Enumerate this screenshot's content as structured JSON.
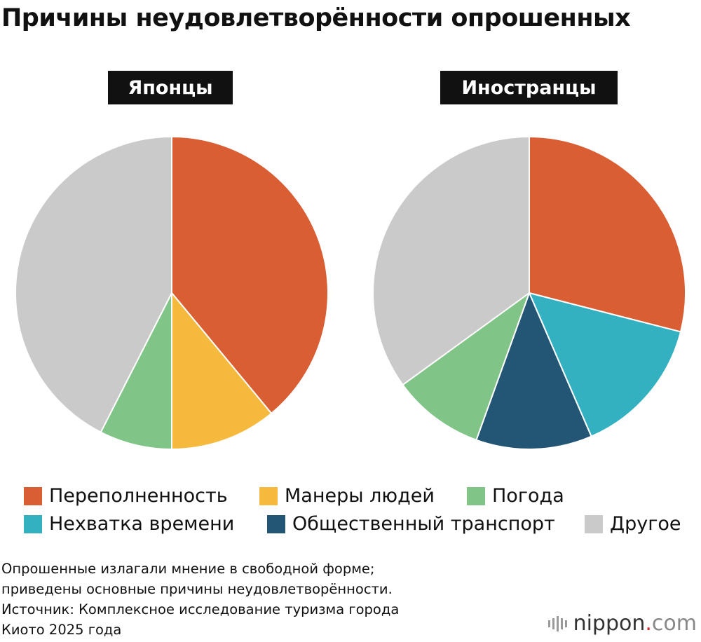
{
  "title": "Причины неудовлетворённости опрошенных",
  "chart_data": [
    {
      "type": "pie",
      "title": "Японцы",
      "colors": [
        "#D95E34",
        "#F5B93D",
        "#80C487",
        "#CACACA"
      ],
      "categories": [
        "Переполненность",
        "Манеры людей",
        "Погода",
        "Другое"
      ],
      "values": [
        39,
        11,
        7.5,
        42.5
      ]
    },
    {
      "type": "pie",
      "title": "Иностранцы",
      "colors": [
        "#D95E34",
        "#34B1C1",
        "#235675",
        "#80C487",
        "#CACACA"
      ],
      "categories": [
        "Переполненность",
        "Нехватка времени",
        "Общественный транспорт",
        "Погода",
        "Другое"
      ],
      "values": [
        29,
        14.5,
        12,
        9.5,
        35
      ]
    }
  ],
  "legend": [
    {
      "label": "Переполненность",
      "color": "#D95E34"
    },
    {
      "label": "Манеры людей",
      "color": "#F5B93D"
    },
    {
      "label": "Погода",
      "color": "#80C487"
    },
    {
      "label": "Нехватка времени",
      "color": "#34B1C1"
    },
    {
      "label": "Общественный транспорт",
      "color": "#235675"
    },
    {
      "label": "Другое",
      "color": "#CACACA"
    }
  ],
  "notes": [
    "Опрошенные излагали мнение в свободной форме;",
    "приведены основные причины неудовлетворённости.",
    "Источник: Комплексное исследование туризма города",
    "Киото 2025 года"
  ],
  "logo": {
    "name": "nippon",
    "dot": ".",
    "tld": "com"
  }
}
